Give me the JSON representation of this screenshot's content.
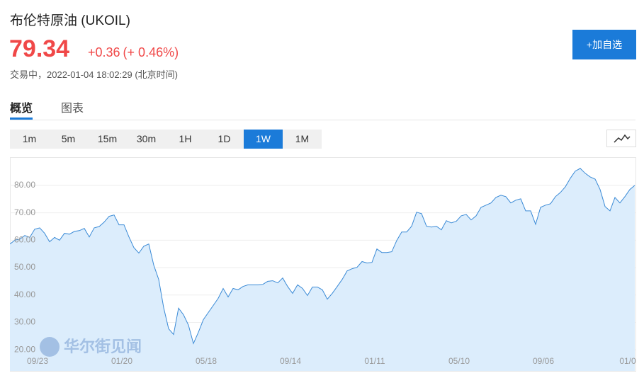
{
  "header": {
    "title": "布伦特原油  (UKOIL)",
    "price": "79.34",
    "change": "+0.36",
    "change_pct": "(+ 0.46%)",
    "status": "交易中，2022-01-04 18:02:29 (北京时间)",
    "button": "+加自选"
  },
  "tabs": {
    "items": [
      "概览",
      "图表"
    ],
    "active": 0
  },
  "ranges": {
    "items": [
      "1m",
      "5m",
      "15m",
      "30m",
      "1H",
      "1D",
      "1W",
      "1M"
    ],
    "active": 6
  },
  "watermark": "华尔街见闻",
  "chart_data": {
    "type": "area",
    "color": "#3a8ad6",
    "fill": "#dcedfc",
    "grid": true,
    "ylim": [
      12.3,
      90.3
    ],
    "yticks": [
      {
        "value": 20,
        "label": "20.00"
      },
      {
        "value": 30,
        "label": "30.00"
      },
      {
        "value": 40,
        "label": "40.00"
      },
      {
        "value": 50,
        "label": "50.00"
      },
      {
        "value": 60,
        "label": "60.00"
      },
      {
        "value": 70,
        "label": "70.00"
      },
      {
        "value": 80,
        "label": "80.00"
      }
    ],
    "categories": [
      null,
      null,
      null,
      null,
      null,
      null,
      "09/23",
      null,
      null,
      null,
      null,
      null,
      null,
      null,
      null,
      null,
      null,
      null,
      null,
      null,
      null,
      null,
      null,
      "01/20",
      null,
      null,
      null,
      null,
      null,
      null,
      null,
      null,
      null,
      null,
      null,
      null,
      null,
      null,
      null,
      null,
      "05/18",
      null,
      null,
      null,
      null,
      null,
      null,
      null,
      null,
      null,
      null,
      null,
      null,
      null,
      null,
      null,
      null,
      "09/14",
      null,
      null,
      null,
      null,
      null,
      null,
      null,
      null,
      null,
      null,
      null,
      null,
      null,
      null,
      null,
      null,
      "01/11",
      null,
      null,
      null,
      null,
      null,
      null,
      null,
      null,
      null,
      null,
      null,
      null,
      null,
      null,
      null,
      null,
      "05/10",
      null,
      null,
      null,
      null,
      null,
      null,
      null,
      null,
      null,
      null,
      null,
      null,
      null,
      null,
      null,
      null,
      "09/06",
      null,
      null,
      null,
      null,
      null,
      null,
      null,
      null,
      null,
      null,
      null,
      null,
      null,
      null,
      null,
      null,
      "01/0",
      null
    ],
    "values": [
      58.6,
      60,
      60.4,
      61.7,
      61,
      64,
      64.5,
      62.5,
      59.4,
      61,
      60,
      62.5,
      62.2,
      63.2,
      63.5,
      64.3,
      61.2,
      64.5,
      65,
      66.6,
      68.7,
      69.2,
      65.6,
      65.6,
      61.2,
      57.3,
      55.3,
      57.8,
      58.6,
      50.9,
      45.7,
      35.4,
      27.7,
      25.6,
      35.2,
      32.8,
      29,
      22.3,
      26.4,
      31,
      33.6,
      36.2,
      38.8,
      42.4,
      39.3,
      42.4,
      41.9,
      43.1,
      43.7,
      43.7,
      43.7,
      43.9,
      45,
      45.2,
      44.4,
      46.2,
      43.1,
      40.6,
      43.7,
      42.4,
      39.8,
      42.9,
      42.9,
      41.9,
      38.5,
      40.6,
      43.1,
      45.7,
      48.8,
      49.6,
      50.1,
      52.2,
      51.7,
      51.9,
      56.8,
      55.5,
      55.5,
      55.8,
      59.9,
      63,
      63,
      65.1,
      70.2,
      69.7,
      65.1,
      64.8,
      65.1,
      63.8,
      67.1,
      66.3,
      66.9,
      68.9,
      69.4,
      67.4,
      68.9,
      72,
      72.8,
      73.6,
      75.6,
      76.4,
      75.9,
      73.6,
      74.6,
      75.1,
      70.7,
      70.7,
      65.8,
      72,
      72.8,
      73.3,
      75.9,
      77.4,
      79.5,
      82.6,
      85.2,
      86.2,
      84.4,
      83.1,
      82.3,
      78.5,
      72.3,
      70.7,
      75.6,
      73.6,
      75.9,
      78.5,
      80
    ]
  }
}
